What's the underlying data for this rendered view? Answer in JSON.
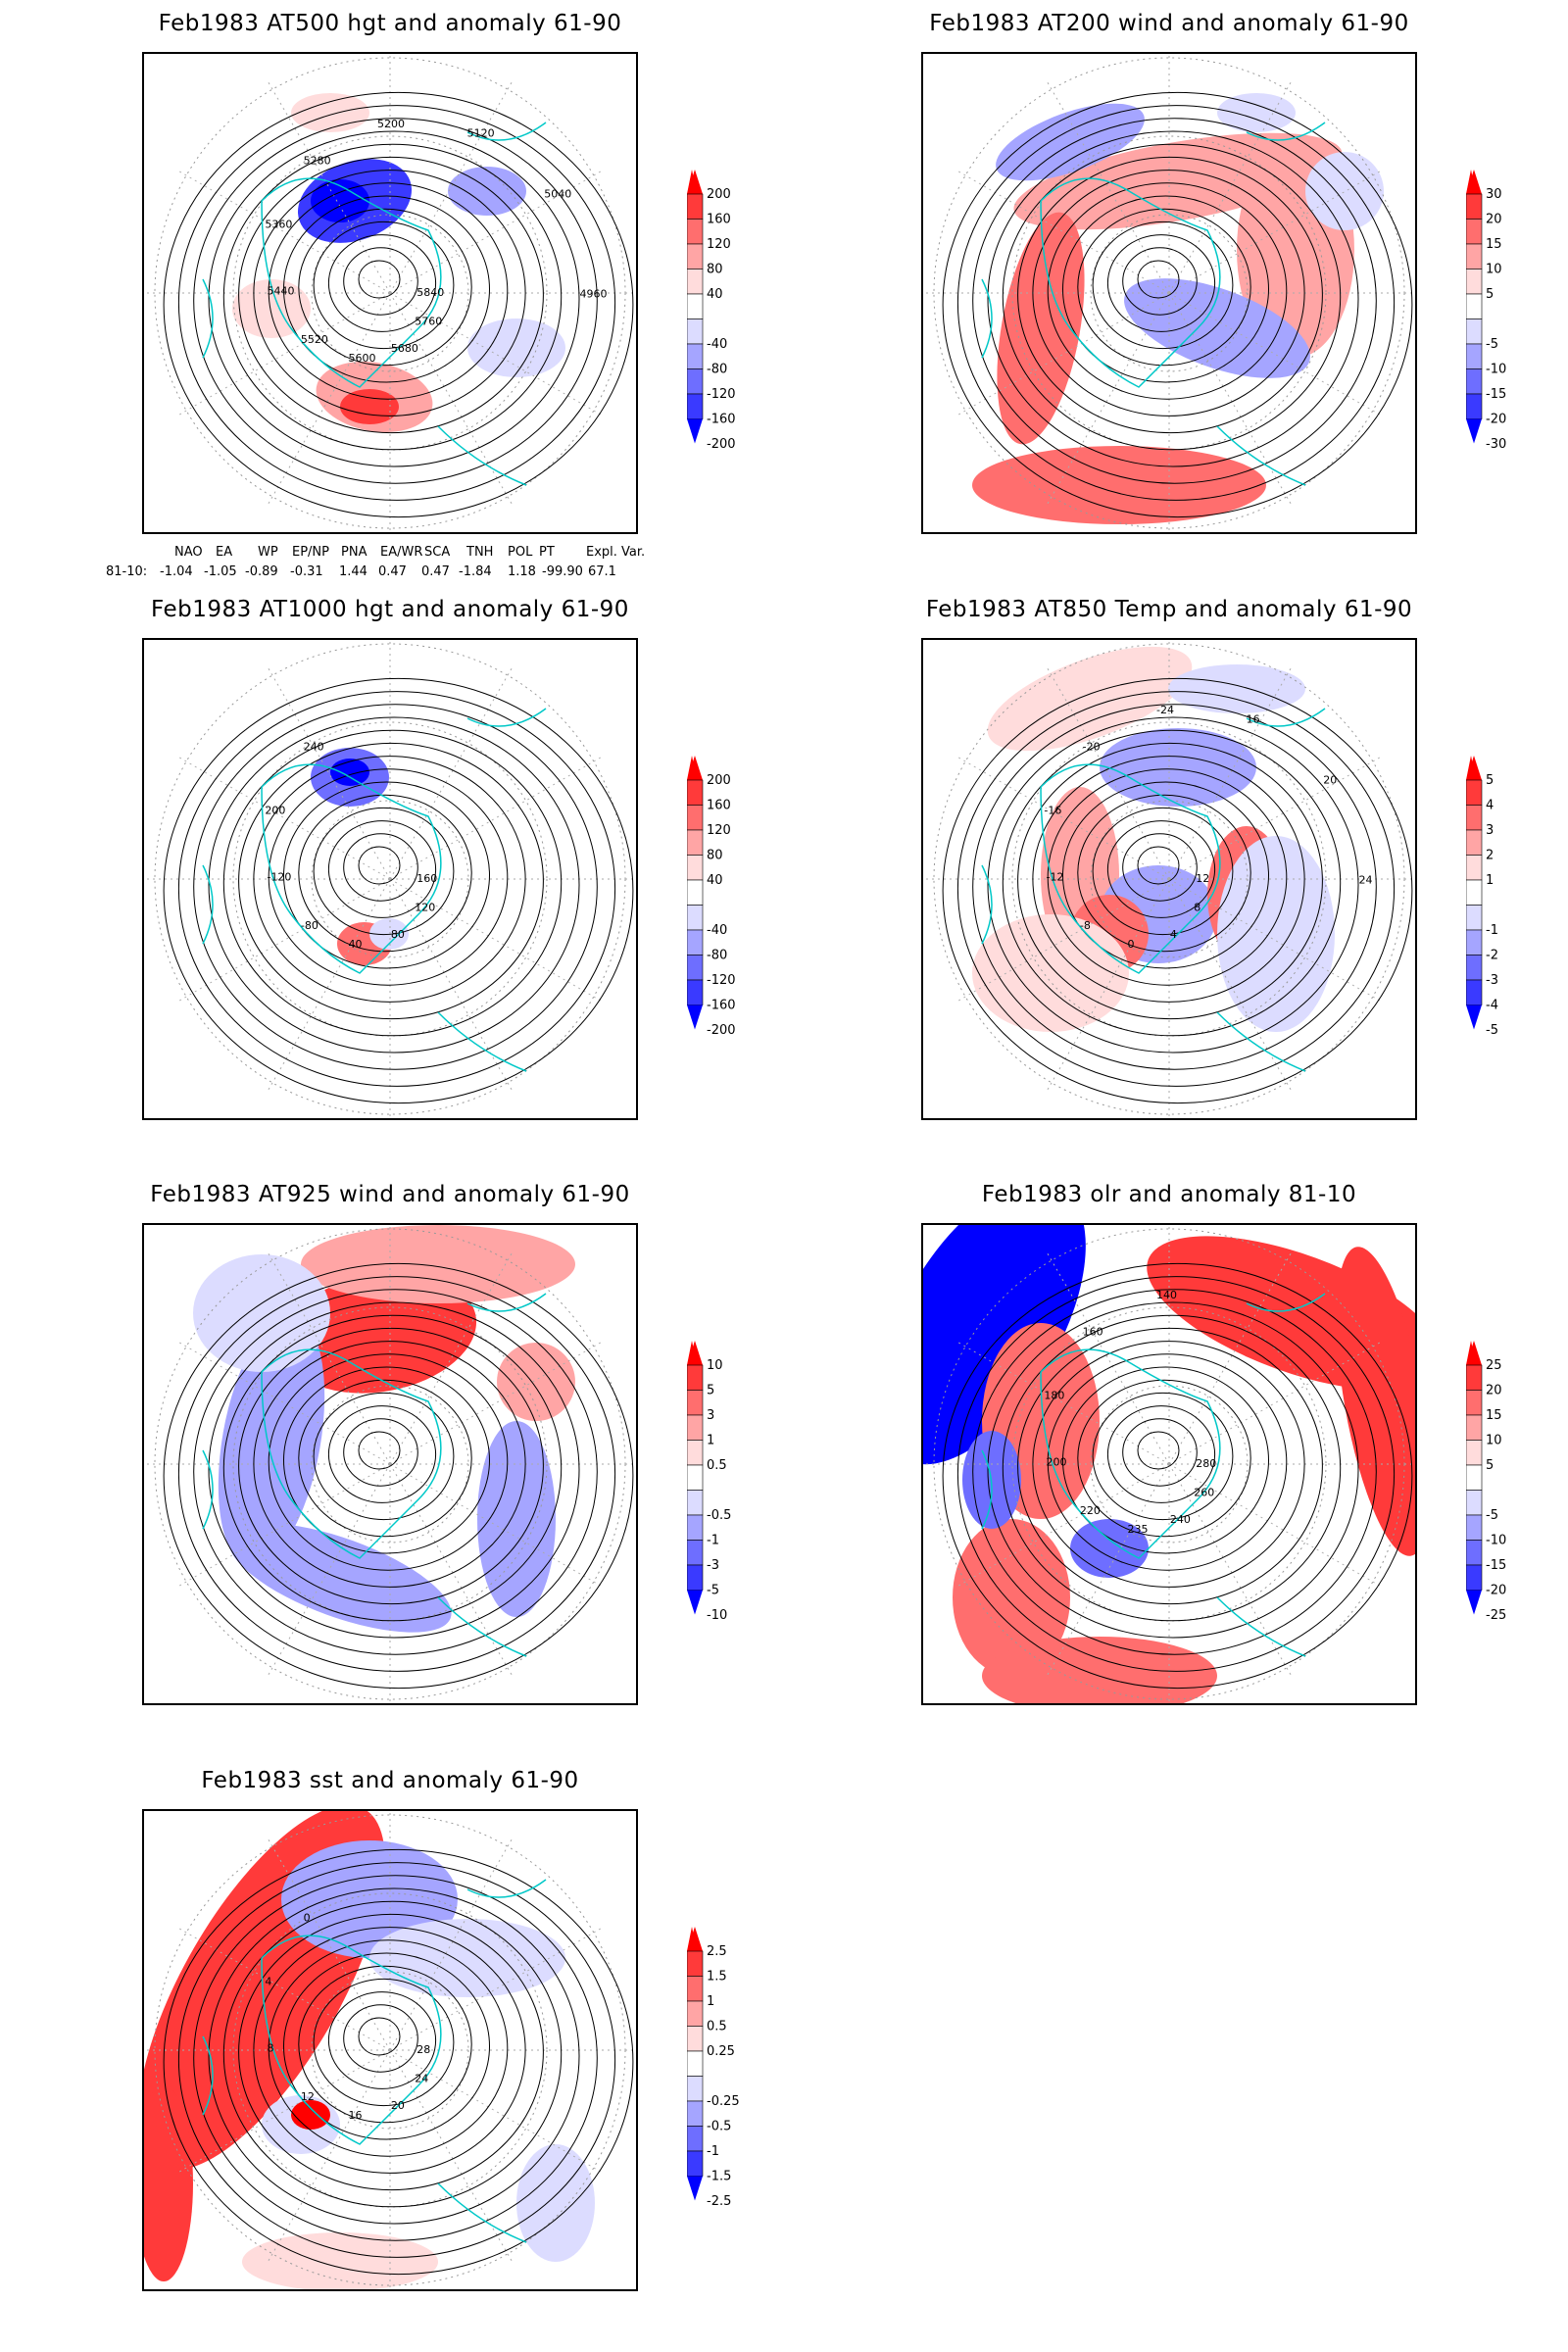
{
  "panels": [
    {
      "id": "at500",
      "title": "Feb1983 AT500 hgt and anomaly 61-90",
      "colorbar": [
        "200",
        "160",
        "120",
        "80",
        "40",
        "-40",
        "-80",
        "-120",
        "-160",
        "-200"
      ],
      "contour_labels": [
        "5840",
        "5760",
        "5680",
        "5600",
        "5520",
        "5440",
        "5360",
        "5280",
        "5200",
        "5120",
        "5040",
        "4960"
      ]
    },
    {
      "id": "at200",
      "title": "Feb1983 AT200 wind and anomaly 61-90",
      "colorbar": [
        "30",
        "20",
        "15",
        "10",
        "5",
        "-5",
        "-10",
        "-15",
        "-20",
        "-30"
      ],
      "contour_labels": []
    },
    {
      "id": "at1000",
      "title": "Feb1983 AT1000 hgt and anomaly 61-90",
      "colorbar": [
        "200",
        "160",
        "120",
        "80",
        "40",
        "-40",
        "-80",
        "-120",
        "-160",
        "-200"
      ],
      "contour_labels": [
        "160",
        "120",
        "80",
        "40",
        "-80",
        "-120",
        "200",
        "240"
      ]
    },
    {
      "id": "at850",
      "title": "Feb1983 AT850 Temp and anomaly 61-90",
      "colorbar": [
        "5",
        "4",
        "3",
        "2",
        "1",
        "-1",
        "-2",
        "-3",
        "-4",
        "-5"
      ],
      "contour_labels": [
        "12",
        "8",
        "4",
        "0",
        "-8",
        "-12",
        "-16",
        "-20",
        "-24",
        "16",
        "20",
        "24"
      ]
    },
    {
      "id": "at925",
      "title": "Feb1983 AT925 wind and anomaly 61-90",
      "colorbar": [
        "10",
        "5",
        "3",
        "1",
        "0.5",
        "-0.5",
        "-1",
        "-3",
        "-5",
        "-10"
      ],
      "contour_labels": []
    },
    {
      "id": "olr",
      "title": "Feb1983 olr and anomaly 81-10",
      "colorbar": [
        "25",
        "20",
        "15",
        "10",
        "5",
        "-5",
        "-10",
        "-15",
        "-20",
        "-25"
      ],
      "contour_labels": [
        "280",
        "260",
        "240",
        "235",
        "220",
        "200",
        "180",
        "160",
        "140"
      ]
    },
    {
      "id": "sst",
      "title": "Feb1983 sst and anomaly 61-90",
      "colorbar": [
        "2.5",
        "1.5",
        "1",
        "0.5",
        "0.25",
        "-0.25",
        "-0.5",
        "-1",
        "-1.5",
        "-2.5"
      ],
      "contour_labels": [
        "28",
        "24",
        "20",
        "16",
        "12",
        "8",
        "4",
        "0"
      ]
    }
  ],
  "colors": {
    "red": [
      "#ff0000",
      "#ff3a3a",
      "#ff6e6e",
      "#ffa5a5",
      "#ffdcdc"
    ],
    "blue": [
      "#dcdcff",
      "#a5a5ff",
      "#6e6eff",
      "#3a3aff",
      "#0000ff"
    ],
    "coast": "#00c8c8"
  },
  "indices": {
    "headers": [
      "NAO",
      "EA",
      "WP",
      "EP/NP",
      "PNA",
      "EA/WR",
      "SCA",
      "TNH",
      "POL",
      "PT",
      "Expl. Var."
    ],
    "row_label": "81-10:",
    "values": [
      "-1.04",
      "-1.05",
      "-0.89",
      "-0.31",
      "1.44",
      "0.47",
      "0.47",
      "-1.84",
      "1.18",
      "-99.90",
      "67.1"
    ]
  }
}
